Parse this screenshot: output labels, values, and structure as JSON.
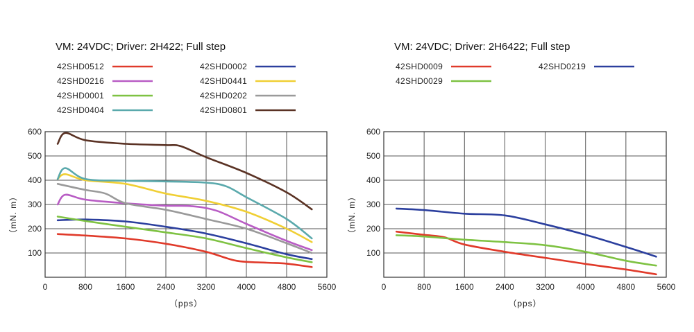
{
  "chart_data": [
    {
      "type": "line",
      "title": "VM:  24VDC;  Driver: 2H422;  Full step",
      "xlabel": "（pps）",
      "ylabel": "（mN. m）",
      "xlim": [
        0,
        5600
      ],
      "ylim": [
        0,
        600
      ],
      "x_ticks": [
        0,
        800,
        1600,
        2400,
        3200,
        4000,
        4800,
        5600
      ],
      "y_ticks": [
        100,
        200,
        300,
        400,
        500,
        600
      ],
      "grid": true,
      "legend_placement": "top",
      "series": [
        {
          "name": "42SHD0512",
          "color": "#e03a2a",
          "x": [
            250,
            800,
            1600,
            2400,
            3200,
            3800,
            4400,
            4800,
            5300
          ],
          "y": [
            178,
            172,
            160,
            138,
            105,
            68,
            60,
            56,
            42
          ]
        },
        {
          "name": "42SHD0002",
          "color": "#2b3f9e",
          "x": [
            250,
            800,
            1600,
            2400,
            3200,
            4000,
            4800,
            5300
          ],
          "y": [
            235,
            238,
            230,
            208,
            180,
            140,
            95,
            75
          ]
        },
        {
          "name": "42SHD0216",
          "color": "#b85cc4",
          "x": [
            250,
            400,
            800,
            1600,
            2400,
            2900,
            3400,
            4000,
            4800,
            5300
          ],
          "y": [
            300,
            340,
            320,
            305,
            295,
            293,
            275,
            220,
            150,
            112
          ]
        },
        {
          "name": "42SHD0441",
          "color": "#f0cf34",
          "x": [
            250,
            400,
            800,
            1600,
            2400,
            3200,
            4000,
            4800,
            5300
          ],
          "y": [
            405,
            425,
            400,
            385,
            345,
            315,
            270,
            200,
            145
          ]
        },
        {
          "name": "42SHD0001",
          "color": "#7ec242",
          "x": [
            250,
            800,
            1600,
            2400,
            3200,
            4000,
            4800,
            5300
          ],
          "y": [
            250,
            232,
            208,
            185,
            160,
            120,
            82,
            62
          ]
        },
        {
          "name": "42SHD0202",
          "color": "#9a9a9a",
          "x": [
            250,
            800,
            1200,
            1600,
            2400,
            3200,
            4000,
            4800,
            5300
          ],
          "y": [
            385,
            360,
            345,
            305,
            278,
            240,
            200,
            140,
            100
          ]
        },
        {
          "name": "42SHD0404",
          "color": "#5aa9ac",
          "x": [
            250,
            400,
            800,
            1600,
            2400,
            3200,
            3600,
            4000,
            4800,
            5300
          ],
          "y": [
            405,
            450,
            405,
            398,
            395,
            390,
            375,
            330,
            240,
            160
          ]
        },
        {
          "name": "42SHD0801",
          "color": "#5a3224",
          "x": [
            250,
            400,
            800,
            1600,
            2400,
            2700,
            3200,
            4000,
            4800,
            5300
          ],
          "y": [
            550,
            595,
            565,
            550,
            545,
            540,
            495,
            430,
            350,
            280
          ]
        }
      ]
    },
    {
      "type": "line",
      "title": "VM:  24VDC;  Driver: 2H6422;  Full step",
      "xlabel": "（pps）",
      "ylabel": "（mN. m）",
      "xlim": [
        0,
        5600
      ],
      "ylim": [
        0,
        600
      ],
      "x_ticks": [
        0,
        800,
        1600,
        2400,
        3200,
        4000,
        4800,
        5600
      ],
      "y_ticks": [
        100,
        200,
        300,
        400,
        500,
        600
      ],
      "grid": true,
      "legend_placement": "top",
      "series": [
        {
          "name": "42SHD0009",
          "color": "#e03a2a",
          "x": [
            250,
            800,
            1200,
            1600,
            2400,
            3200,
            4000,
            4800,
            5400
          ],
          "y": [
            188,
            175,
            165,
            135,
            105,
            80,
            55,
            32,
            12
          ]
        },
        {
          "name": "42SHD0219",
          "color": "#2b3f9e",
          "x": [
            250,
            800,
            1600,
            2400,
            3200,
            4000,
            4800,
            5400
          ],
          "y": [
            283,
            277,
            262,
            255,
            218,
            175,
            125,
            85
          ]
        },
        {
          "name": "42SHD0029",
          "color": "#7ec242",
          "x": [
            250,
            800,
            1600,
            2400,
            3200,
            4000,
            4800,
            5400
          ],
          "y": [
            173,
            168,
            155,
            145,
            132,
            105,
            68,
            48
          ]
        }
      ]
    }
  ]
}
